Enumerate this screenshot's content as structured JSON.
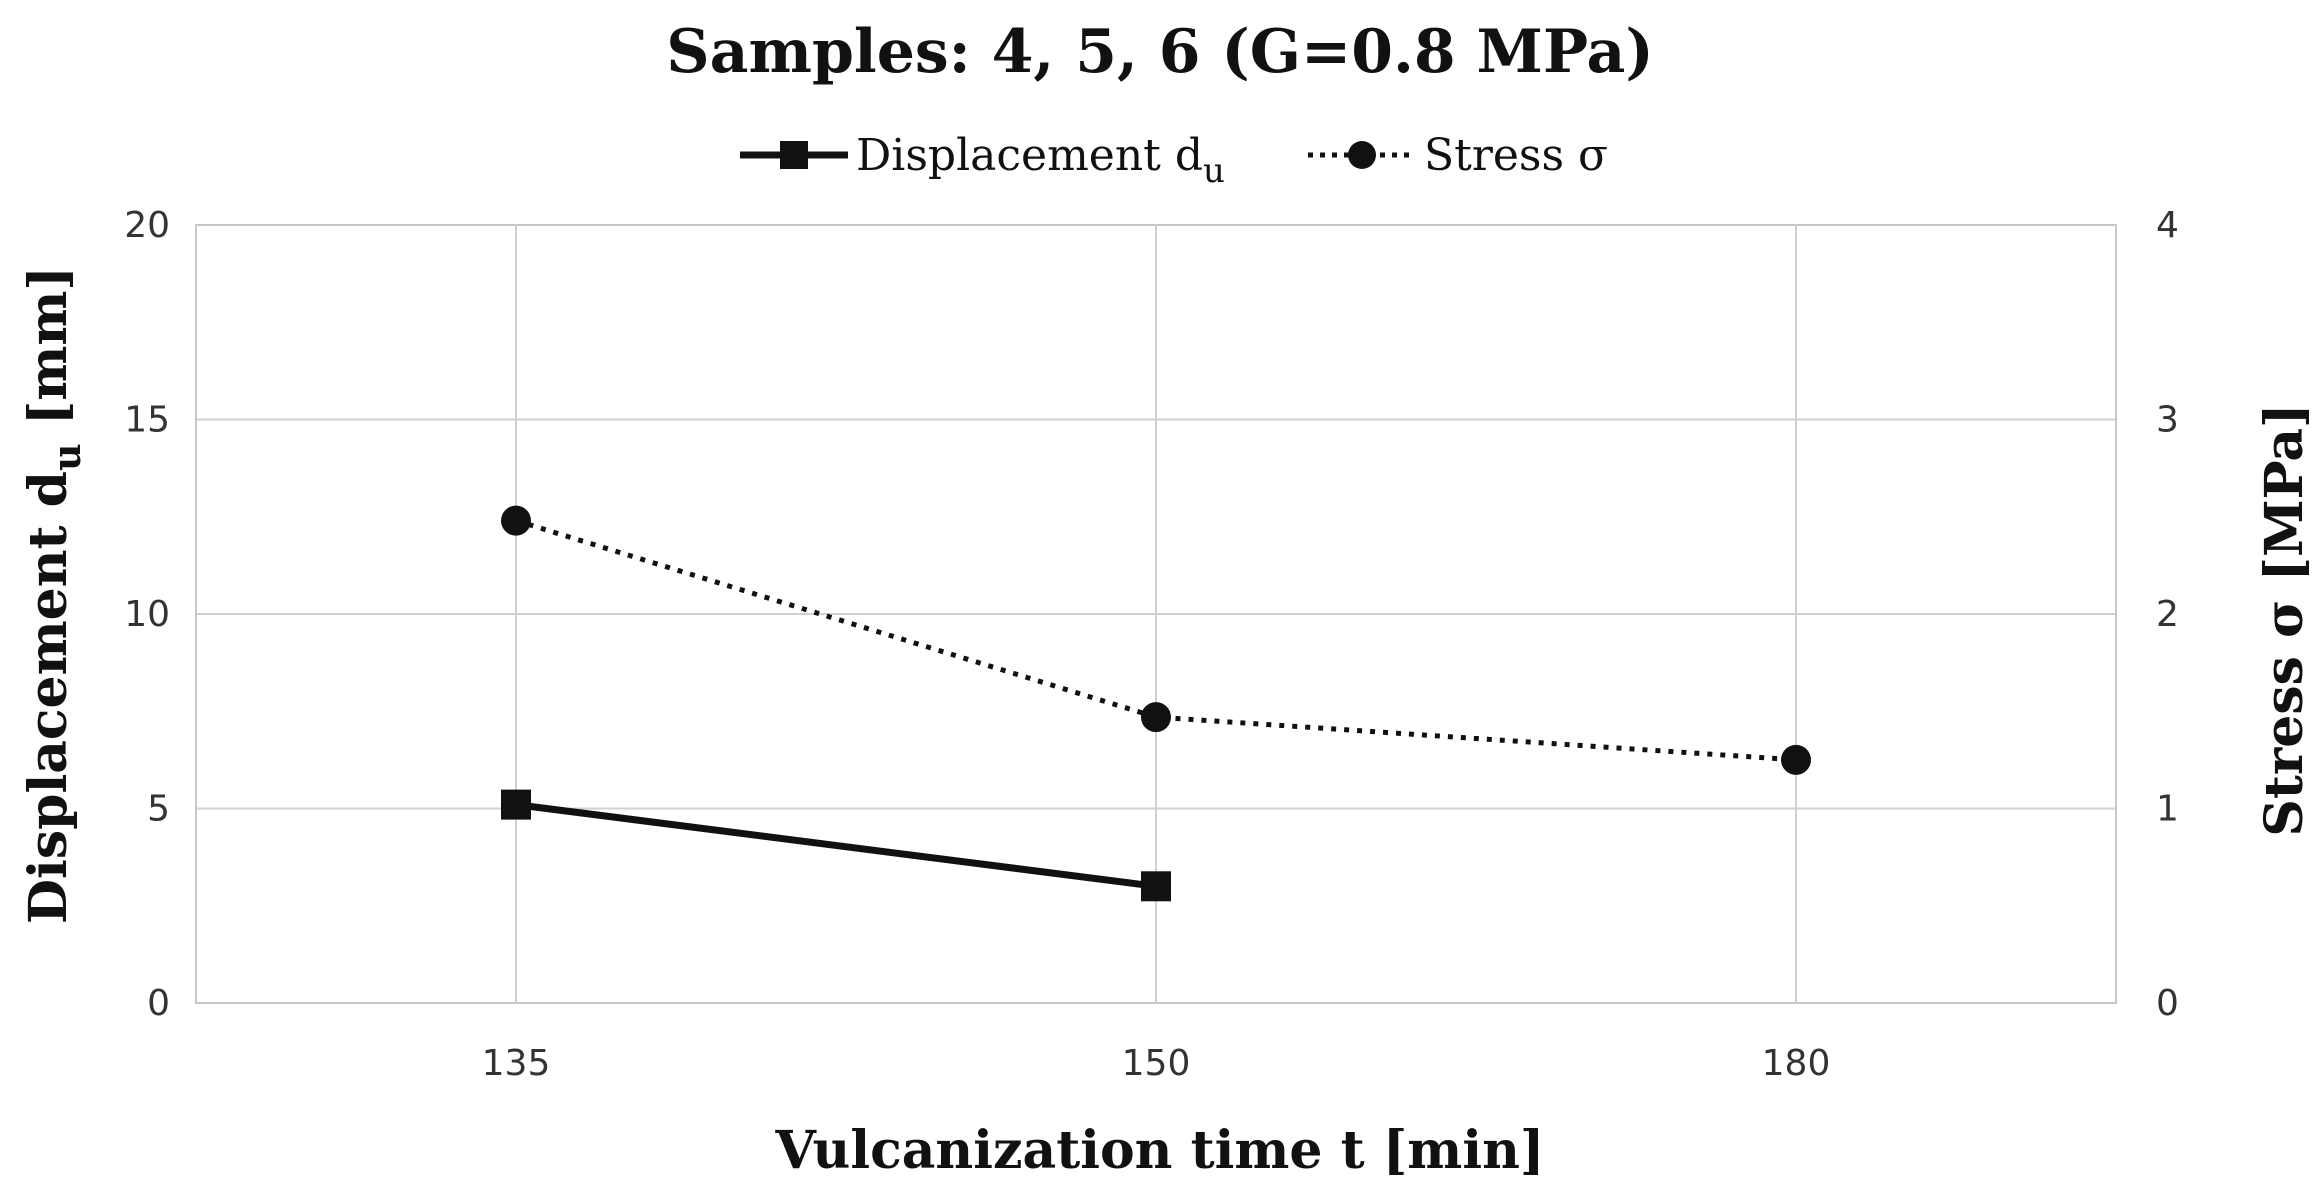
{
  "chart_data": {
    "type": "line",
    "title": "Samples: 4, 5, 6 (G=0.8 MPa)",
    "xlabel": "Vulcanization time t [min]",
    "ylabel": "Displacement d",
    "ylabel_sub": "u",
    "ylabel_unit": " [mm]",
    "y2label": "Stress σ [MPa]",
    "categories": [
      "135",
      "150",
      "180"
    ],
    "ylim": [
      0,
      20
    ],
    "y2lim": [
      0,
      4
    ],
    "yticks": [
      "0",
      "5",
      "10",
      "15",
      "20"
    ],
    "y2ticks": [
      "0",
      "1",
      "2",
      "3",
      "4"
    ],
    "grid": true,
    "legend_position": "top-center",
    "series": [
      {
        "name": "Displacement d",
        "name_sub": "u",
        "axis": "left",
        "style": "solid",
        "marker": "square",
        "values": [
          5.1,
          3.0,
          null
        ]
      },
      {
        "name": "Stress σ",
        "name_sub": "",
        "axis": "right",
        "style": "dotted",
        "marker": "circle",
        "values": [
          2.48,
          1.47,
          1.25
        ]
      }
    ]
  }
}
